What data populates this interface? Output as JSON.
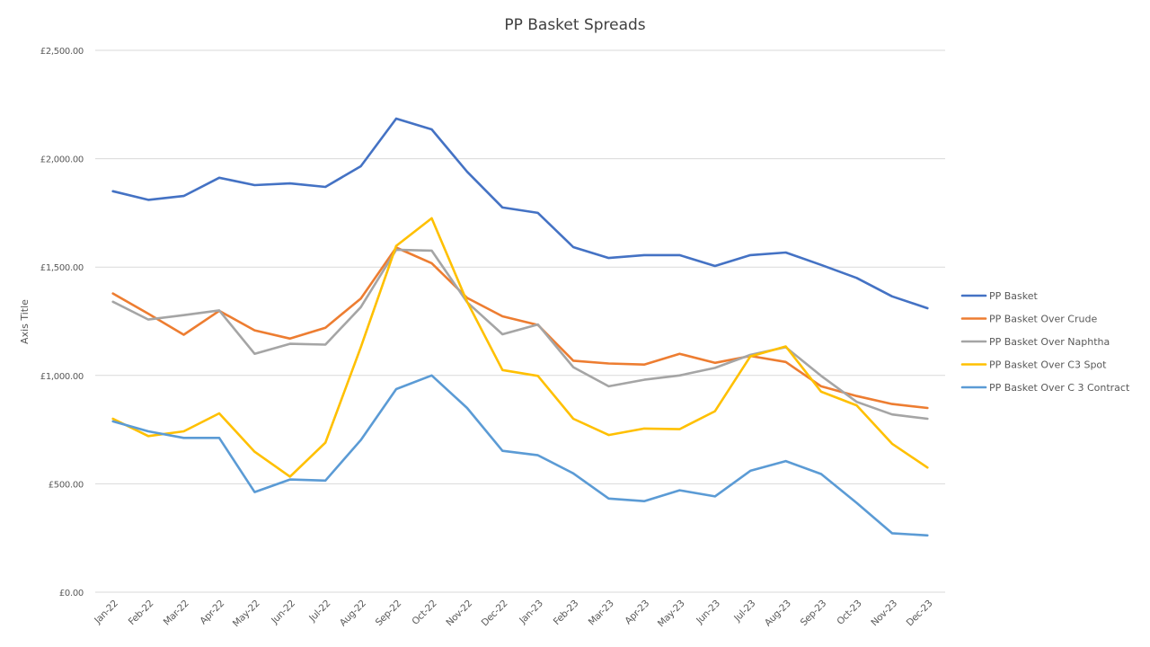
{
  "chart_data": {
    "type": "line",
    "title": "PP Basket Spreads",
    "xlabel": "",
    "ylabel": "Axis Title",
    "ylim": [
      0,
      2500
    ],
    "yticks": [
      0,
      500,
      1000,
      1500,
      2000,
      2500
    ],
    "ytick_labels": [
      "£0.00",
      "£500.00",
      "£1,000.00",
      "£1,500.00",
      "£2,000.00",
      "£2,500.00"
    ],
    "grid": true,
    "legend_position": "right",
    "categories": [
      "Jan-22",
      "Feb-22",
      "Mar-22",
      "Apr-22",
      "May-22",
      "Jun-22",
      "Jul-22",
      "Aug-22",
      "Sep-22",
      "Oct-22",
      "Nov-22",
      "Dec-22",
      "Jan-23",
      "Feb-23",
      "Mar-23",
      "Apr-23",
      "May-23",
      "Jun-23",
      "Jul-23",
      "Aug-23",
      "Sep-23",
      "Oct-23",
      "Nov-23",
      "Dec-23"
    ],
    "series": [
      {
        "name": "PP Basket",
        "color": "#4472c4",
        "values": [
          1850,
          1810,
          1828,
          1912,
          1878,
          1886,
          1870,
          1965,
          2185,
          2135,
          1940,
          1775,
          1750,
          1592,
          1542,
          1555,
          1555,
          1505,
          1555,
          1567,
          1510,
          1450,
          1365,
          1310
        ]
      },
      {
        "name": "PP Basket Over Crude",
        "color": "#ed7d31",
        "values": [
          1378,
          1285,
          1188,
          1298,
          1208,
          1170,
          1220,
          1355,
          1590,
          1518,
          1358,
          1273,
          1233,
          1068,
          1055,
          1050,
          1100,
          1058,
          1090,
          1062,
          950,
          905,
          868,
          850
        ]
      },
      {
        "name": "PP Basket Over Naphtha",
        "color": "#a5a5a5",
        "values": [
          1340,
          1258,
          1278,
          1300,
          1100,
          1146,
          1142,
          1315,
          1580,
          1576,
          1338,
          1190,
          1235,
          1038,
          950,
          980,
          1000,
          1035,
          1095,
          1130,
          998,
          878,
          820,
          800
        ]
      },
      {
        "name": "PP Basket Over C3 Spot",
        "color": "#ffc000",
        "values": [
          800,
          720,
          742,
          825,
          648,
          533,
          690,
          1130,
          1598,
          1725,
          1340,
          1025,
          998,
          800,
          725,
          755,
          752,
          835,
          1088,
          1134,
          925,
          862,
          685,
          575
        ]
      },
      {
        "name": "PP Basket Over C 3 Contract",
        "color": "#5b9bd5",
        "values": [
          788,
          742,
          712,
          712,
          462,
          520,
          515,
          702,
          937,
          1000,
          850,
          652,
          632,
          548,
          432,
          420,
          470,
          442,
          560,
          605,
          545,
          412,
          272,
          262
        ]
      }
    ]
  }
}
